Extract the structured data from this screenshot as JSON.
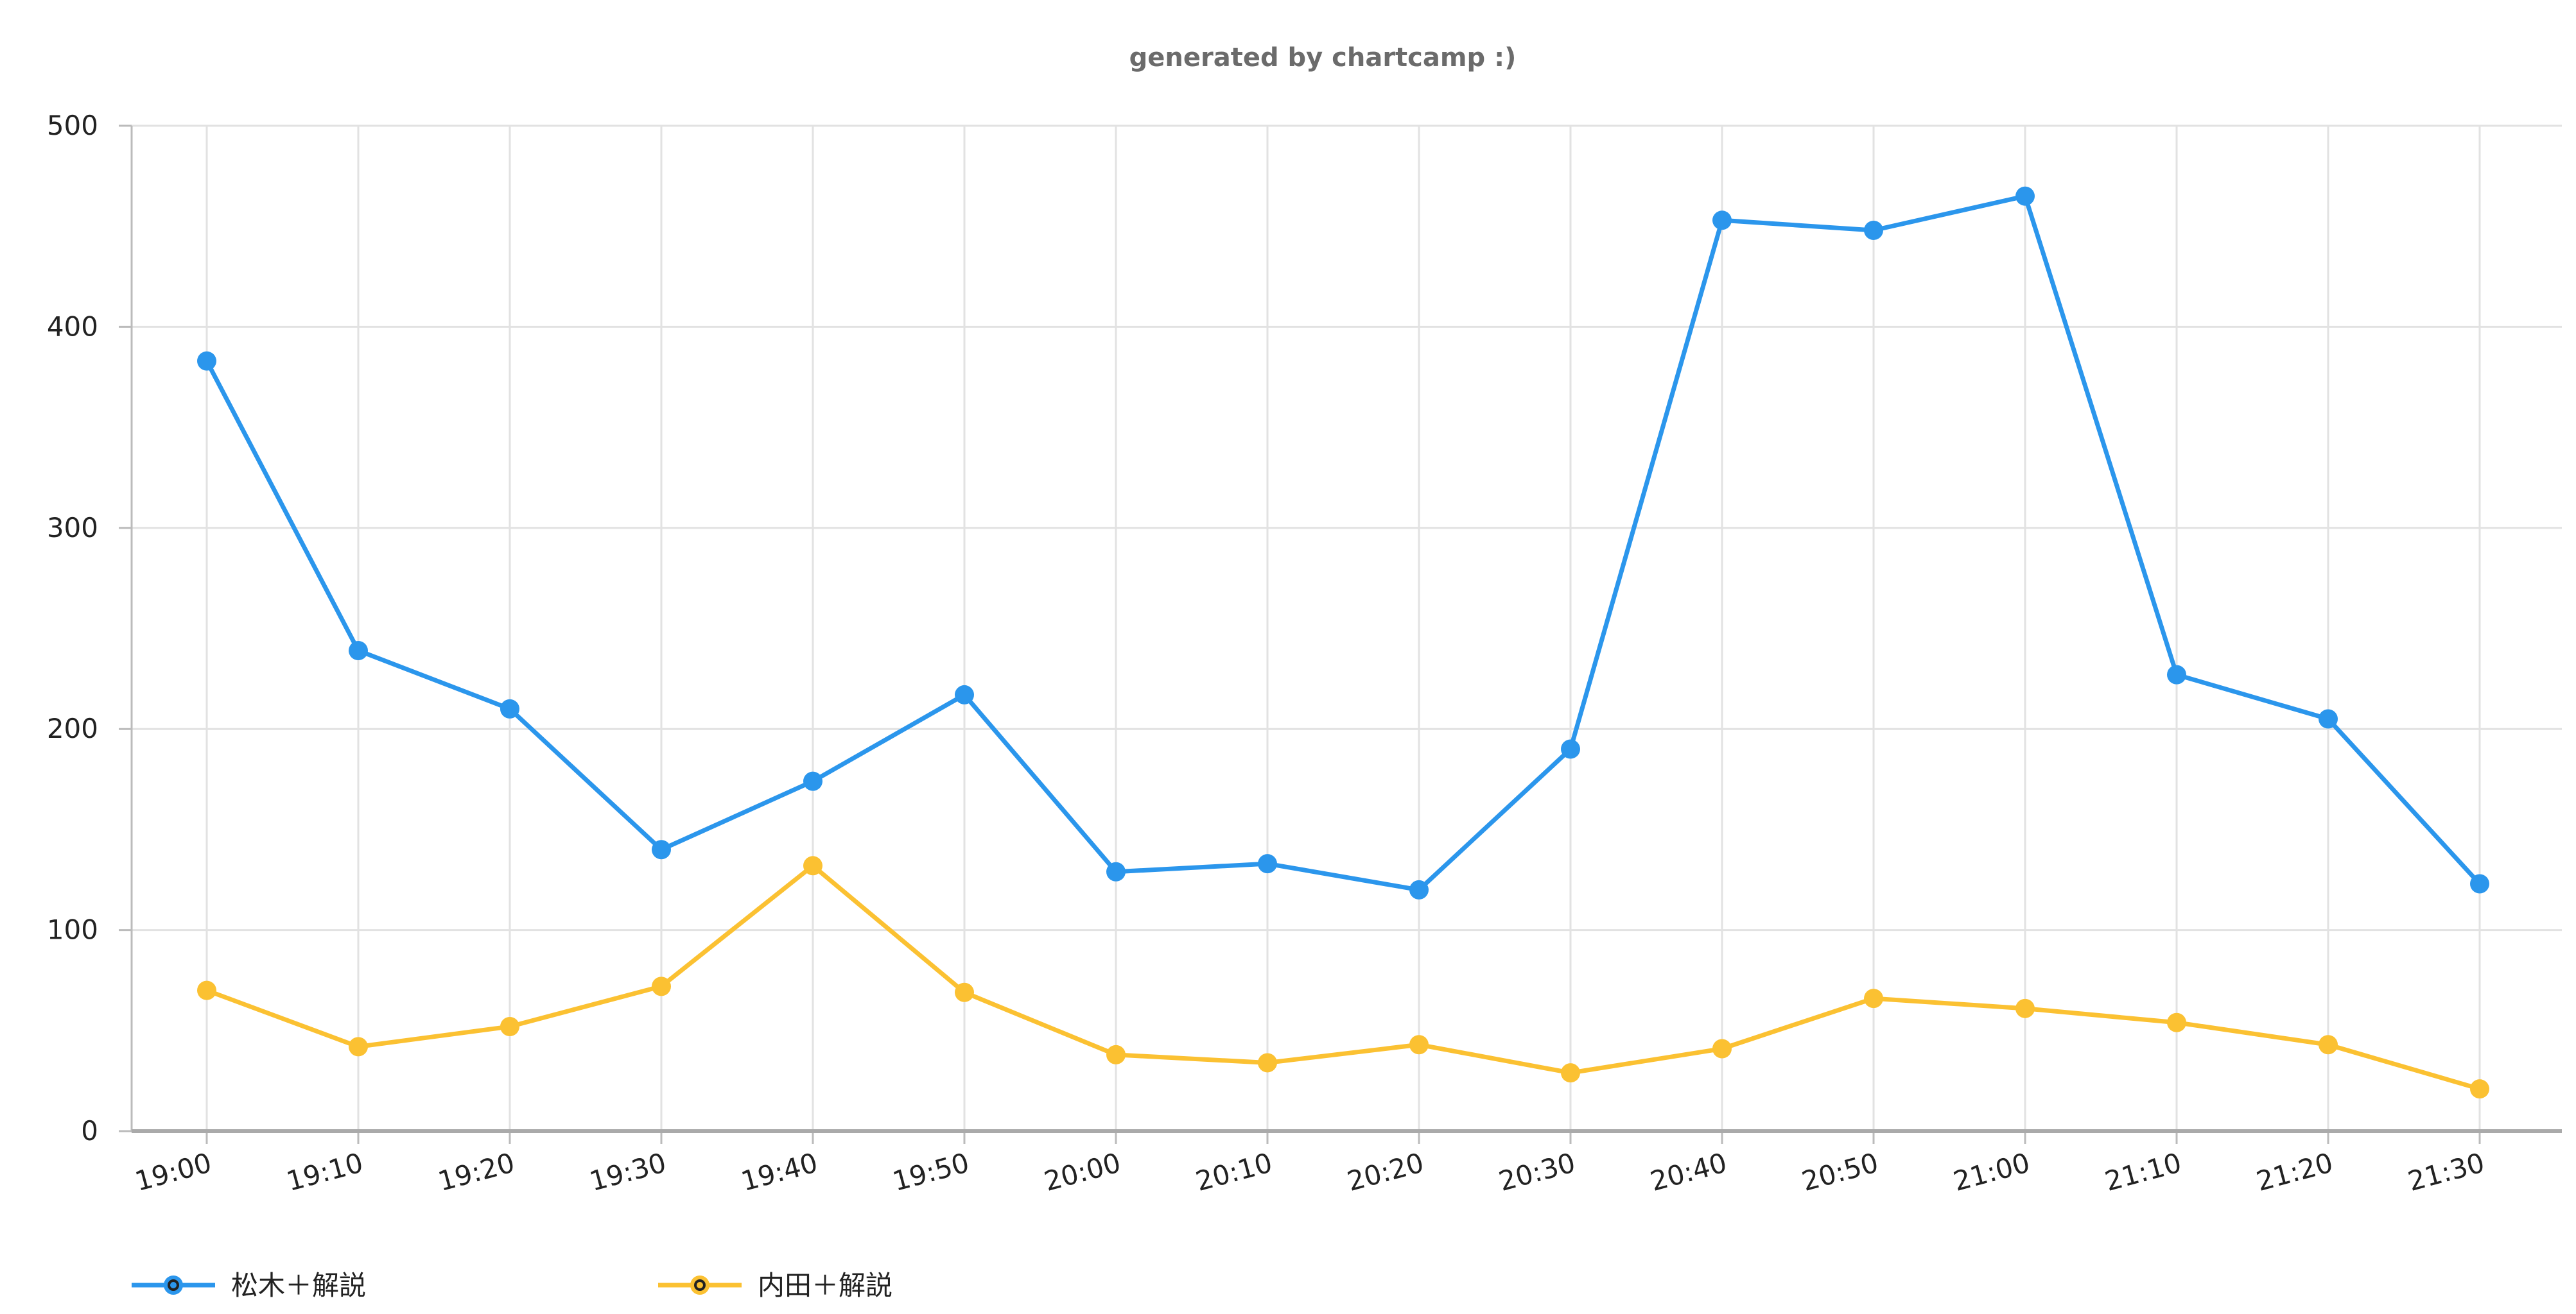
{
  "chart_data": {
    "type": "line",
    "title": "generated by chartcamp :)",
    "categories": [
      "19:00",
      "19:10",
      "19:20",
      "19:30",
      "19:40",
      "19:50",
      "20:00",
      "20:10",
      "20:20",
      "20:30",
      "20:40",
      "20:50",
      "21:00",
      "21:10",
      "21:20",
      "21:30"
    ],
    "ylim": [
      0,
      500
    ],
    "yticks": [
      "0",
      "100",
      "200",
      "300",
      "400",
      "500"
    ],
    "grid": true,
    "legend_position": "bottom-left",
    "series": [
      {
        "name": "松木＋解説",
        "color": "#2B96EC",
        "values": [
          383,
          239,
          210,
          140,
          174,
          217,
          129,
          133,
          120,
          190,
          453,
          448,
          465,
          227,
          205,
          123
        ]
      },
      {
        "name": "内田＋解説",
        "color": "#FBC132",
        "values": [
          70,
          42,
          52,
          72,
          132,
          69,
          38,
          34,
          43,
          29,
          41,
          66,
          61,
          54,
          43,
          21
        ]
      }
    ]
  }
}
